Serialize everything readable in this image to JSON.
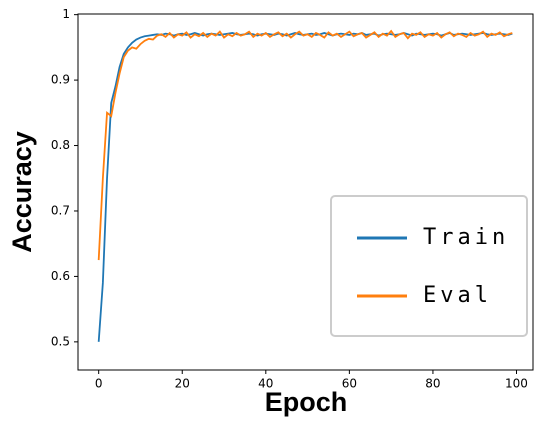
{
  "chart_data": {
    "type": "line",
    "xlabel": "Epoch",
    "ylabel": "Accuracy",
    "x": [
      0,
      1,
      2,
      3,
      4,
      5,
      6,
      7,
      8,
      9,
      10,
      11,
      12,
      13,
      14,
      15,
      16,
      17,
      18,
      19,
      20,
      21,
      22,
      23,
      24,
      25,
      26,
      27,
      28,
      29,
      30,
      31,
      32,
      33,
      34,
      35,
      36,
      37,
      38,
      39,
      40,
      41,
      42,
      43,
      44,
      45,
      46,
      47,
      48,
      49,
      50,
      51,
      52,
      53,
      54,
      55,
      56,
      57,
      58,
      59,
      60,
      61,
      62,
      63,
      64,
      65,
      66,
      67,
      68,
      69,
      70,
      71,
      72,
      73,
      74,
      75,
      76,
      77,
      78,
      79,
      80,
      81,
      82,
      83,
      84,
      85,
      86,
      87,
      88,
      89,
      90,
      91,
      92,
      93,
      94,
      95,
      96,
      97,
      98,
      99
    ],
    "series": [
      {
        "name": "Train",
        "color": "#1f77b4",
        "values": [
          0.5,
          0.59,
          0.75,
          0.865,
          0.89,
          0.92,
          0.94,
          0.95,
          0.957,
          0.962,
          0.965,
          0.967,
          0.968,
          0.969,
          0.97,
          0.969,
          0.971,
          0.97,
          0.968,
          0.97,
          0.971,
          0.969,
          0.97,
          0.972,
          0.97,
          0.968,
          0.97,
          0.971,
          0.97,
          0.969,
          0.97,
          0.971,
          0.972,
          0.97,
          0.969,
          0.97,
          0.971,
          0.97,
          0.968,
          0.97,
          0.971,
          0.97,
          0.969,
          0.971,
          0.97,
          0.968,
          0.97,
          0.972,
          0.97,
          0.969,
          0.97,
          0.971,
          0.969,
          0.97,
          0.972,
          0.97,
          0.968,
          0.97,
          0.971,
          0.97,
          0.969,
          0.971,
          0.97,
          0.972,
          0.969,
          0.97,
          0.971,
          0.968,
          0.97,
          0.971,
          0.97,
          0.969,
          0.97,
          0.972,
          0.97,
          0.968,
          0.971,
          0.97,
          0.969,
          0.97,
          0.971,
          0.97,
          0.968,
          0.97,
          0.972,
          0.969,
          0.97,
          0.971,
          0.97,
          0.969,
          0.97,
          0.971,
          0.972,
          0.97,
          0.969,
          0.97,
          0.971,
          0.97,
          0.969,
          0.971
        ]
      },
      {
        "name": "Eval",
        "color": "#ff7f0e",
        "values": [
          0.625,
          0.75,
          0.85,
          0.845,
          0.88,
          0.91,
          0.935,
          0.945,
          0.95,
          0.948,
          0.955,
          0.96,
          0.963,
          0.962,
          0.968,
          0.97,
          0.966,
          0.972,
          0.965,
          0.97,
          0.968,
          0.973,
          0.965,
          0.97,
          0.967,
          0.972,
          0.966,
          0.971,
          0.968,
          0.974,
          0.965,
          0.97,
          0.967,
          0.972,
          0.968,
          0.97,
          0.974,
          0.966,
          0.971,
          0.968,
          0.972,
          0.966,
          0.97,
          0.973,
          0.967,
          0.971,
          0.965,
          0.97,
          0.974,
          0.968,
          0.97,
          0.966,
          0.972,
          0.969,
          0.965,
          0.973,
          0.968,
          0.971,
          0.966,
          0.97,
          0.974,
          0.967,
          0.97,
          0.972,
          0.965,
          0.969,
          0.973,
          0.966,
          0.971,
          0.968,
          0.975,
          0.966,
          0.97,
          0.972,
          0.964,
          0.971,
          0.969,
          0.973,
          0.966,
          0.97,
          0.968,
          0.972,
          0.965,
          0.97,
          0.973,
          0.967,
          0.971,
          0.969,
          0.966,
          0.972,
          0.968,
          0.97,
          0.974,
          0.966,
          0.971,
          0.969,
          0.973,
          0.967,
          0.97,
          0.972
        ]
      }
    ],
    "xlim": [
      -4.95,
      103.95
    ],
    "xticks": [
      0,
      20,
      40,
      60,
      80,
      100
    ],
    "ylim": [
      0.457,
      1.001
    ],
    "yticks": [
      0.5,
      0.6,
      0.7,
      0.8,
      0.9,
      1.0
    ],
    "legend": "lower right",
    "grid": false
  }
}
